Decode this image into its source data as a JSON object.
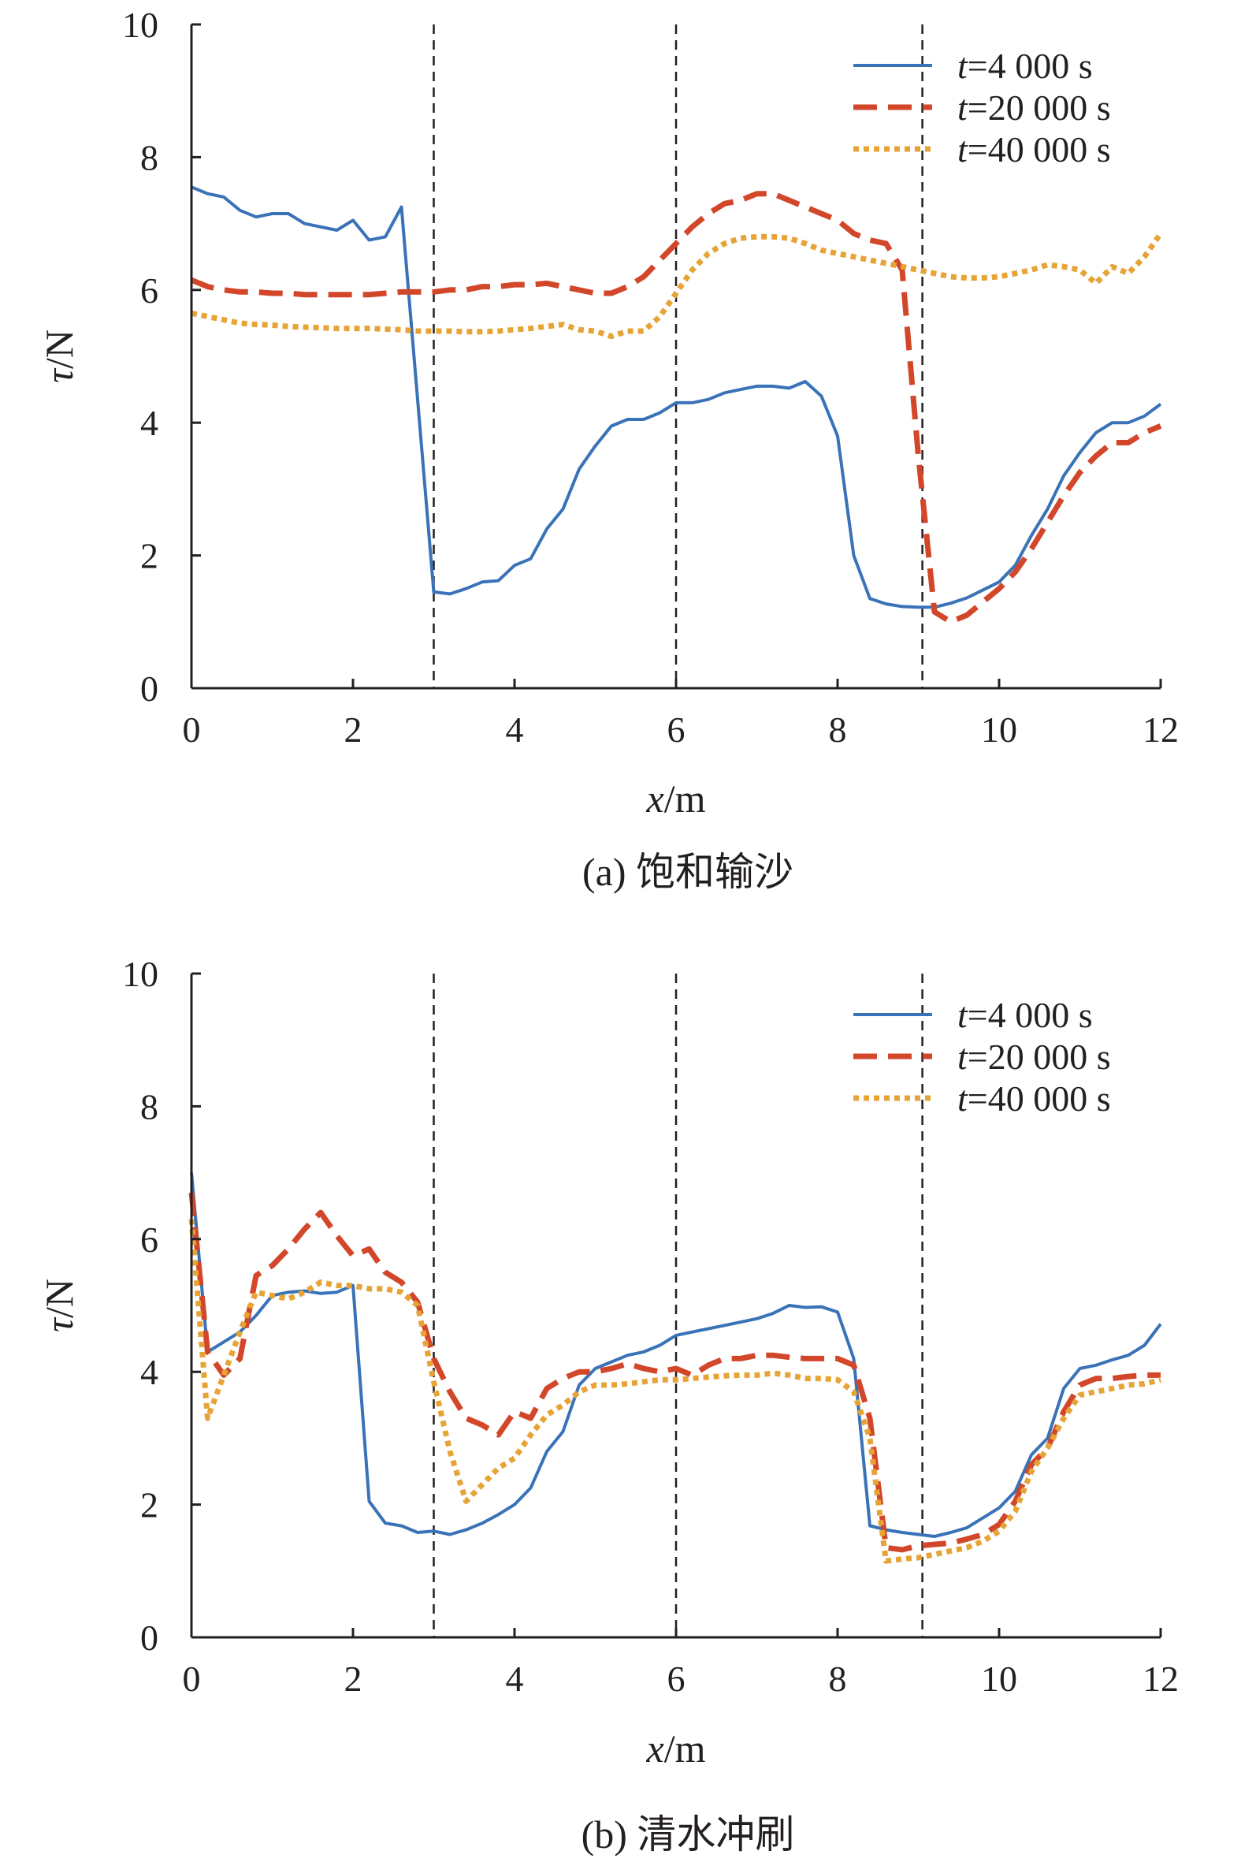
{
  "colors": {
    "blue": "#3a72b7",
    "red": "#d2462a",
    "orange": "#e6a437",
    "axis": "#231f20"
  },
  "chart_data": [
    {
      "type": "line",
      "caption": "(a) 饱和输沙",
      "xlabel": {
        "var": "x",
        "unit": "/m"
      },
      "ylabel": {
        "var": "τ",
        "unit": "/N"
      },
      "xlim": [
        0,
        12
      ],
      "ylim": [
        0,
        10
      ],
      "xticks": [
        "0",
        "2",
        "4",
        "6",
        "8",
        "10",
        "12"
      ],
      "yticks": [
        "0",
        "2",
        "4",
        "6",
        "8",
        "10"
      ],
      "xtick_values": [
        0,
        2,
        4,
        6,
        8,
        10,
        12
      ],
      "ytick_values": [
        0,
        2,
        4,
        6,
        8,
        10
      ],
      "vlines": [
        3,
        6,
        9.05
      ],
      "legend_position": "top-right",
      "series": [
        {
          "name": "t=4 000 s",
          "var": "t",
          "label": "=4 000 s",
          "style": "solid",
          "color": "#3a72b7",
          "x": [
            0,
            0.2,
            0.4,
            0.6,
            0.8,
            1.0,
            1.2,
            1.4,
            1.6,
            1.8,
            2.0,
            2.2,
            2.4,
            2.6,
            3.0,
            3.2,
            3.4,
            3.6,
            3.8,
            4.0,
            4.2,
            4.4,
            4.6,
            4.8,
            5.0,
            5.2,
            5.4,
            5.6,
            5.8,
            6.0,
            6.2,
            6.4,
            6.6,
            6.8,
            7.0,
            7.2,
            7.4,
            7.6,
            7.8,
            8.0,
            8.2,
            8.4,
            8.6,
            8.8,
            9.0,
            9.2,
            9.4,
            9.6,
            9.8,
            10.0,
            10.2,
            10.4,
            10.6,
            10.8,
            11.0,
            11.2,
            11.4,
            11.6,
            11.8,
            12.0
          ],
          "y": [
            7.55,
            7.45,
            7.4,
            7.2,
            7.1,
            7.15,
            7.15,
            7.0,
            6.95,
            6.9,
            7.05,
            6.75,
            6.8,
            7.25,
            1.45,
            1.42,
            1.5,
            1.6,
            1.62,
            1.85,
            1.95,
            2.4,
            2.7,
            3.3,
            3.65,
            3.95,
            4.05,
            4.05,
            4.15,
            4.3,
            4.3,
            4.35,
            4.45,
            4.5,
            4.55,
            4.55,
            4.52,
            4.62,
            4.4,
            3.8,
            2.0,
            1.35,
            1.27,
            1.23,
            1.22,
            1.22,
            1.28,
            1.36,
            1.48,
            1.6,
            1.85,
            2.3,
            2.7,
            3.2,
            3.55,
            3.85,
            4.0,
            4.0,
            4.1,
            4.28
          ]
        },
        {
          "name": "t=20 000 s",
          "var": "t",
          "label": "=20 000 s",
          "style": "dashed",
          "color": "#d2462a",
          "x": [
            0,
            0.2,
            0.4,
            0.6,
            0.8,
            1.0,
            1.2,
            1.4,
            1.6,
            1.8,
            2.0,
            2.2,
            2.4,
            2.6,
            2.8,
            3.0,
            3.2,
            3.4,
            3.6,
            3.8,
            4.0,
            4.2,
            4.4,
            4.6,
            4.8,
            5.0,
            5.2,
            5.4,
            5.6,
            5.8,
            6.0,
            6.2,
            6.4,
            6.6,
            6.8,
            7.0,
            7.2,
            7.4,
            7.6,
            7.8,
            8.0,
            8.2,
            8.4,
            8.6,
            8.8,
            9.0,
            9.2,
            9.4,
            9.6,
            9.8,
            10.0,
            10.2,
            10.4,
            10.6,
            10.8,
            11.0,
            11.2,
            11.4,
            11.6,
            11.8,
            12.0
          ],
          "y": [
            6.15,
            6.05,
            6.0,
            5.97,
            5.97,
            5.95,
            5.95,
            5.93,
            5.93,
            5.93,
            5.93,
            5.93,
            5.95,
            5.97,
            5.97,
            5.97,
            6.0,
            6.0,
            6.05,
            6.05,
            6.08,
            6.08,
            6.1,
            6.05,
            6.0,
            5.95,
            5.95,
            6.05,
            6.2,
            6.45,
            6.7,
            6.95,
            7.15,
            7.3,
            7.35,
            7.45,
            7.45,
            7.35,
            7.25,
            7.15,
            7.05,
            6.85,
            6.75,
            6.7,
            6.3,
            3.5,
            1.15,
            1.0,
            1.1,
            1.3,
            1.5,
            1.75,
            2.1,
            2.5,
            2.9,
            3.25,
            3.5,
            3.7,
            3.7,
            3.85,
            3.95
          ]
        },
        {
          "name": "t=40 000 s",
          "var": "t",
          "label": "=40 000 s",
          "style": "dotted",
          "color": "#e6a437",
          "x": [
            0,
            0.2,
            0.4,
            0.6,
            0.8,
            1.0,
            1.2,
            1.4,
            1.6,
            1.8,
            2.0,
            2.2,
            2.4,
            2.6,
            2.8,
            3.0,
            3.2,
            3.4,
            3.6,
            3.8,
            4.0,
            4.2,
            4.4,
            4.6,
            4.8,
            5.0,
            5.2,
            5.4,
            5.6,
            5.8,
            6.0,
            6.2,
            6.4,
            6.6,
            6.8,
            7.0,
            7.2,
            7.4,
            7.6,
            7.8,
            8.0,
            8.2,
            8.4,
            8.6,
            8.8,
            9.0,
            9.2,
            9.4,
            9.6,
            9.8,
            10.0,
            10.2,
            10.4,
            10.6,
            10.8,
            11.0,
            11.2,
            11.4,
            11.6,
            11.8,
            12.0
          ],
          "y": [
            5.65,
            5.6,
            5.55,
            5.5,
            5.48,
            5.47,
            5.45,
            5.44,
            5.43,
            5.42,
            5.42,
            5.42,
            5.41,
            5.4,
            5.38,
            5.38,
            5.38,
            5.37,
            5.37,
            5.38,
            5.4,
            5.42,
            5.45,
            5.48,
            5.4,
            5.38,
            5.3,
            5.38,
            5.38,
            5.6,
            5.95,
            6.3,
            6.55,
            6.7,
            6.78,
            6.8,
            6.8,
            6.78,
            6.7,
            6.6,
            6.55,
            6.5,
            6.45,
            6.4,
            6.35,
            6.3,
            6.25,
            6.2,
            6.18,
            6.18,
            6.2,
            6.25,
            6.3,
            6.38,
            6.35,
            6.3,
            6.1,
            6.35,
            6.25,
            6.5,
            6.85
          ]
        }
      ]
    },
    {
      "type": "line",
      "caption": "(b) 清水冲刷",
      "xlabel": {
        "var": "x",
        "unit": "/m"
      },
      "ylabel": {
        "var": "τ",
        "unit": "/N"
      },
      "xlim": [
        0,
        12
      ],
      "ylim": [
        0,
        10
      ],
      "xticks": [
        "0",
        "2",
        "4",
        "6",
        "8",
        "10",
        "12"
      ],
      "yticks": [
        "0",
        "2",
        "4",
        "6",
        "8",
        "10"
      ],
      "xtick_values": [
        0,
        2,
        4,
        6,
        8,
        10,
        12
      ],
      "ytick_values": [
        0,
        2,
        4,
        6,
        8,
        10
      ],
      "vlines": [
        3,
        6,
        9.05
      ],
      "legend_position": "top-right",
      "series": [
        {
          "name": "t=4 000 s",
          "var": "t",
          "label": "=4 000 s",
          "style": "solid",
          "color": "#3a72b7",
          "x": [
            0,
            0.2,
            0.4,
            0.6,
            0.8,
            1.0,
            1.2,
            1.4,
            1.6,
            1.8,
            2.0,
            2.2,
            2.4,
            2.6,
            2.8,
            3.0,
            3.2,
            3.4,
            3.6,
            3.8,
            4.0,
            4.2,
            4.4,
            4.6,
            4.8,
            5.0,
            5.2,
            5.4,
            5.6,
            5.8,
            6.0,
            6.2,
            6.4,
            6.6,
            6.8,
            7.0,
            7.2,
            7.4,
            7.6,
            7.8,
            8.0,
            8.2,
            8.4,
            8.6,
            8.8,
            9.0,
            9.2,
            9.4,
            9.6,
            9.8,
            10.0,
            10.2,
            10.4,
            10.6,
            10.8,
            11.0,
            11.2,
            11.4,
            11.6,
            11.8,
            12.0
          ],
          "y": [
            7.0,
            4.3,
            4.45,
            4.6,
            4.85,
            5.15,
            5.2,
            5.22,
            5.18,
            5.2,
            5.3,
            2.05,
            1.72,
            1.68,
            1.58,
            1.6,
            1.55,
            1.62,
            1.72,
            1.85,
            2.0,
            2.25,
            2.8,
            3.1,
            3.8,
            4.05,
            4.15,
            4.25,
            4.3,
            4.4,
            4.55,
            4.6,
            4.65,
            4.7,
            4.75,
            4.8,
            4.88,
            5.0,
            4.97,
            4.98,
            4.9,
            4.2,
            1.68,
            1.62,
            1.58,
            1.55,
            1.52,
            1.58,
            1.65,
            1.8,
            1.95,
            2.2,
            2.75,
            3.0,
            3.75,
            4.05,
            4.1,
            4.18,
            4.25,
            4.4,
            4.72
          ]
        },
        {
          "name": "t=20 000 s",
          "var": "t",
          "label": "=20 000 s",
          "style": "dashed",
          "color": "#d2462a",
          "x": [
            0,
            0.2,
            0.4,
            0.6,
            0.8,
            1.0,
            1.2,
            1.4,
            1.6,
            1.8,
            2.0,
            2.2,
            2.4,
            2.6,
            2.8,
            3.0,
            3.2,
            3.4,
            3.6,
            3.8,
            4.0,
            4.2,
            4.4,
            4.6,
            4.8,
            5.0,
            5.2,
            5.4,
            5.6,
            5.8,
            6.0,
            6.2,
            6.4,
            6.6,
            6.8,
            7.0,
            7.2,
            7.4,
            7.6,
            7.8,
            8.0,
            8.2,
            8.4,
            8.6,
            8.8,
            9.0,
            9.2,
            9.4,
            9.6,
            9.8,
            10.0,
            10.2,
            10.4,
            10.6,
            10.8,
            11.0,
            11.2,
            11.4,
            11.6,
            11.8,
            12.0
          ],
          "y": [
            6.7,
            4.3,
            3.95,
            4.2,
            5.45,
            5.6,
            5.85,
            6.15,
            6.4,
            6.05,
            5.75,
            5.85,
            5.5,
            5.35,
            5.05,
            4.2,
            3.7,
            3.3,
            3.2,
            3.05,
            3.4,
            3.3,
            3.75,
            3.9,
            4.0,
            4.0,
            4.05,
            4.12,
            4.05,
            4.0,
            4.05,
            3.95,
            4.1,
            4.2,
            4.2,
            4.25,
            4.25,
            4.22,
            4.2,
            4.2,
            4.2,
            4.1,
            3.3,
            1.35,
            1.32,
            1.38,
            1.4,
            1.42,
            1.48,
            1.55,
            1.7,
            2.05,
            2.6,
            2.85,
            3.4,
            3.8,
            3.9,
            3.9,
            3.93,
            3.95,
            3.95
          ]
        },
        {
          "name": "t=40 000 s",
          "var": "t",
          "label": "=40 000 s",
          "style": "dotted",
          "color": "#e6a437",
          "x": [
            0,
            0.2,
            0.4,
            0.6,
            0.8,
            1.0,
            1.2,
            1.4,
            1.6,
            1.8,
            2.0,
            2.2,
            2.4,
            2.6,
            2.8,
            3.0,
            3.2,
            3.4,
            3.6,
            3.8,
            4.0,
            4.2,
            4.4,
            4.6,
            4.8,
            5.0,
            5.2,
            5.4,
            5.6,
            5.8,
            6.0,
            6.2,
            6.4,
            6.6,
            6.8,
            7.0,
            7.2,
            7.4,
            7.6,
            7.8,
            8.0,
            8.2,
            8.4,
            8.6,
            8.8,
            9.0,
            9.2,
            9.4,
            9.6,
            9.8,
            10.0,
            10.2,
            10.4,
            10.6,
            10.8,
            11.0,
            11.2,
            11.4,
            11.6,
            11.8,
            12.0
          ],
          "y": [
            6.3,
            3.3,
            3.95,
            4.6,
            5.2,
            5.15,
            5.1,
            5.2,
            5.35,
            5.3,
            5.3,
            5.25,
            5.25,
            5.2,
            5.0,
            3.85,
            2.8,
            2.05,
            2.3,
            2.55,
            2.7,
            3.05,
            3.35,
            3.5,
            3.7,
            3.8,
            3.8,
            3.82,
            3.85,
            3.88,
            3.88,
            3.9,
            3.92,
            3.94,
            3.95,
            3.95,
            3.98,
            3.95,
            3.9,
            3.9,
            3.88,
            3.7,
            3.0,
            1.15,
            1.18,
            1.2,
            1.25,
            1.3,
            1.35,
            1.45,
            1.6,
            1.9,
            2.5,
            2.85,
            3.3,
            3.65,
            3.7,
            3.75,
            3.8,
            3.82,
            3.88
          ]
        }
      ]
    }
  ]
}
